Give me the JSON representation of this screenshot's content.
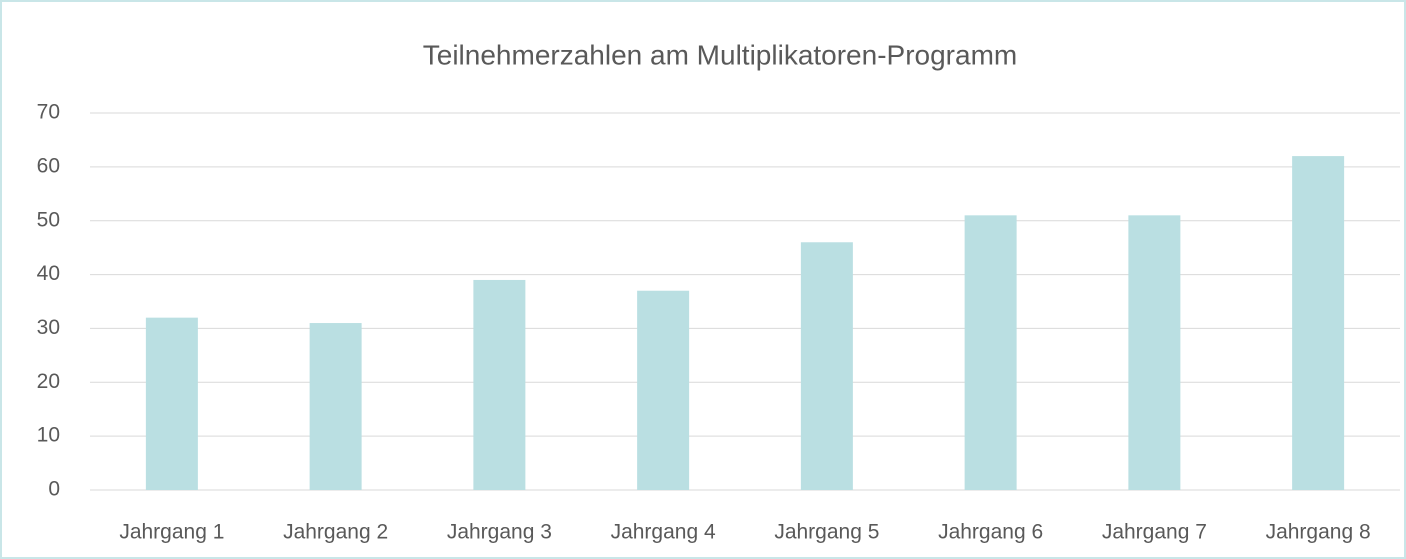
{
  "chart_data": {
    "type": "bar",
    "title": "Teilnehmerzahlen am Multiplikatoren-Programm",
    "categories": [
      "Jahrgang 1",
      "Jahrgang 2",
      "Jahrgang 3",
      "Jahrgang 4",
      "Jahrgang 5",
      "Jahrgang 6",
      "Jahrgang 7",
      "Jahrgang 8"
    ],
    "values": [
      32,
      31,
      39,
      37,
      46,
      51,
      51,
      62
    ],
    "color": "#badfe2",
    "ylim": [
      0,
      70
    ],
    "yticks": [
      0,
      10,
      20,
      30,
      40,
      50,
      60,
      70
    ],
    "grid": true
  }
}
